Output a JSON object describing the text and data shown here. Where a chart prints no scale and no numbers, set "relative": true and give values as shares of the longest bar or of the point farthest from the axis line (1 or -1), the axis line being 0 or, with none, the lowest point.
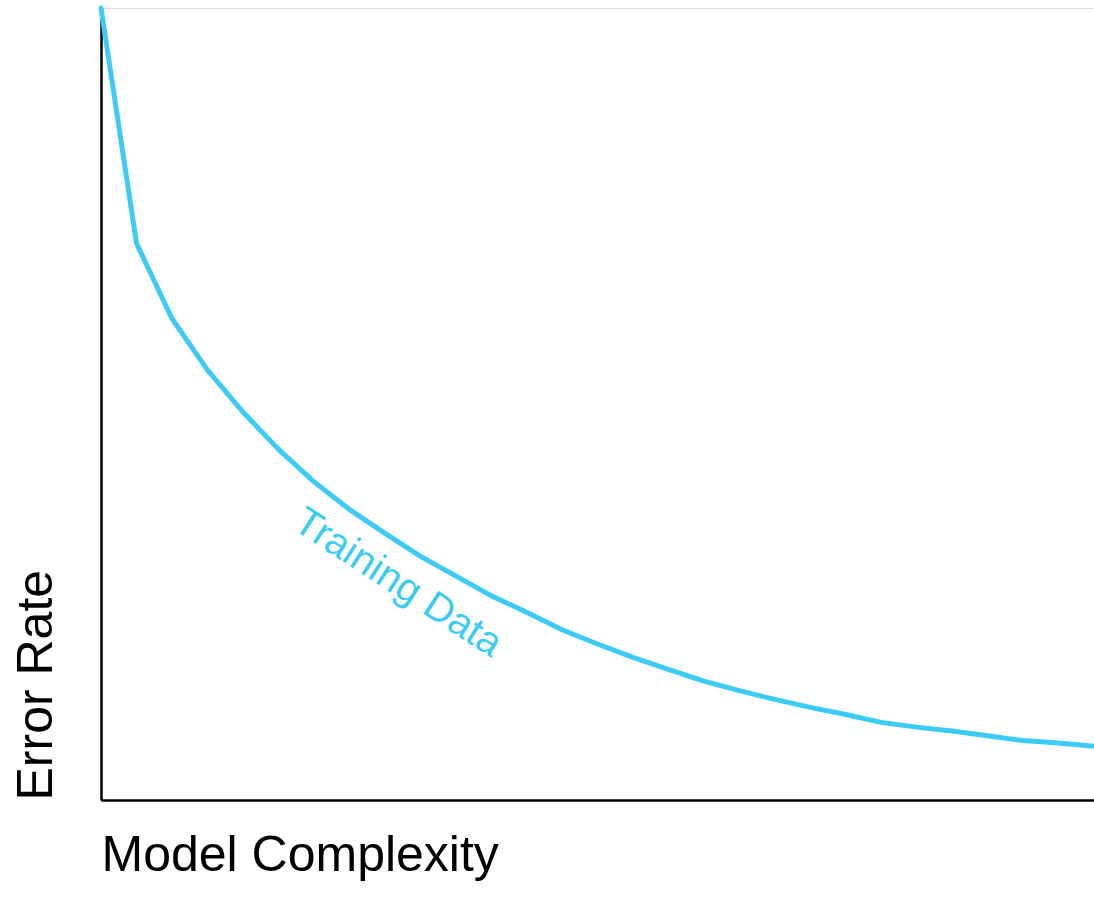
{
  "chart_data": {
    "type": "line",
    "relative": true,
    "xlabel": "Model Complexity",
    "ylabel": "Error Rate",
    "categories": [
      null,
      null,
      null,
      null,
      null,
      null,
      null,
      null,
      null,
      null,
      null,
      null,
      null,
      null,
      null,
      null,
      null,
      null,
      null,
      null,
      null,
      null,
      null,
      null,
      null,
      null,
      null,
      null,
      null
    ],
    "series": [
      {
        "name": "Training Data",
        "color": "#3ccbf4",
        "values": [
          1,
          0.703,
          0.608,
          0.543,
          0.49,
          0.443,
          0.402,
          0.367,
          0.337,
          0.308,
          0.283,
          0.258,
          0.237,
          0.215,
          0.197,
          0.18,
          0.165,
          0.15,
          0.138,
          0.127,
          0.117,
          0.108,
          0.098,
          0.092,
          0.087,
          0.081,
          0.075,
          0.072,
          0.068
        ]
      }
    ],
    "grid": false,
    "marker": "none",
    "line_style": "solid"
  }
}
